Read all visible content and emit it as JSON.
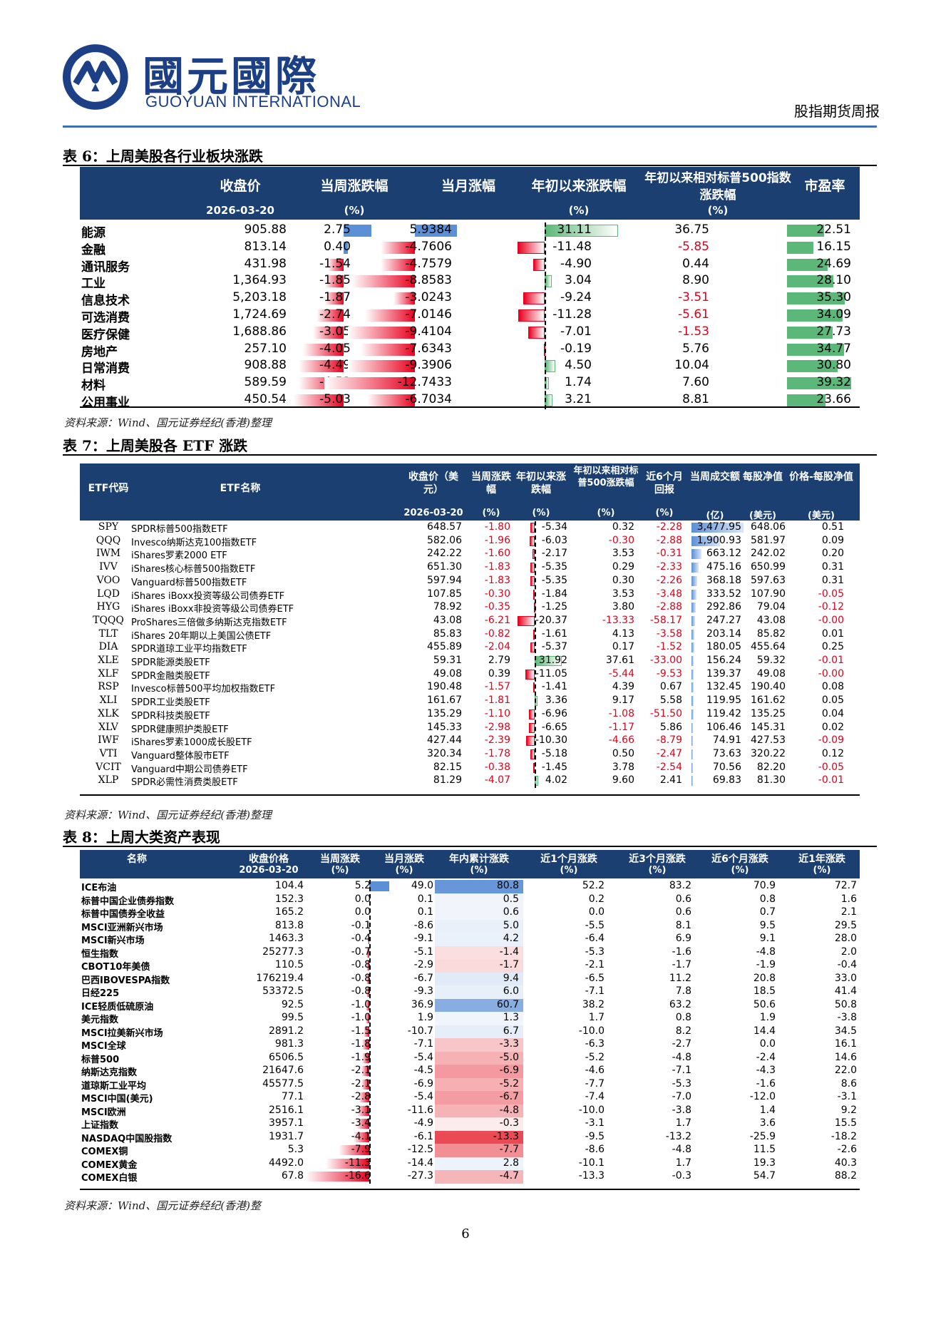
{
  "header": {
    "company_cn": "國元國際",
    "company_en": "GUOYUAN INTERNATIONAL",
    "report_type": "股指期货周报",
    "brand_color": "#1c3f86"
  },
  "page_number": "6",
  "table6": {
    "title": "表 6：上周美股各行业板块涨跌",
    "headers": {
      "close": "收盘价",
      "close_date": "2026-03-20",
      "week": "当周涨跌幅",
      "week_unit": "(%)",
      "month": "当月涨幅",
      "ytd": "年初以来涨跌幅",
      "ytd_unit": "(%)",
      "rel": "年初以来相对标普500指数涨跌幅",
      "rel_unit": "(%)",
      "pe": "市盈率"
    },
    "source": "资料来源：Wind、国元证券经纪(香港)整理",
    "rows": [
      {
        "name": "能源",
        "close": "905.88",
        "week": "2.75",
        "month": "5.9384",
        "ytd": "31.11",
        "rel": "36.75",
        "pe": "22.51",
        "w": 2.75,
        "m": 5.9384,
        "y": 31.11,
        "r": 36.75,
        "p": 22.51
      },
      {
        "name": "金融",
        "close": "813.14",
        "week": "0.40",
        "month": "-4.7606",
        "ytd": "-11.48",
        "rel": "-5.85",
        "pe": "16.15",
        "w": 0.4,
        "m": -4.7606,
        "y": -11.48,
        "r": -5.85,
        "p": 16.15
      },
      {
        "name": "通讯服务",
        "close": "431.98",
        "week": "-1.54",
        "month": "-4.7579",
        "ytd": "-4.90",
        "rel": "0.44",
        "pe": "24.69",
        "w": -1.54,
        "m": -4.7579,
        "y": -4.9,
        "r": 0.44,
        "p": 24.69
      },
      {
        "name": "工业",
        "close": "1,364.93",
        "week": "-1.85",
        "month": "-8.8583",
        "ytd": "3.04",
        "rel": "8.90",
        "pe": "28.10",
        "w": -1.85,
        "m": -8.8583,
        "y": 3.04,
        "r": 8.9,
        "p": 28.1
      },
      {
        "name": "信息技术",
        "close": "5,203.18",
        "week": "-1.87",
        "month": "-3.0243",
        "ytd": "-9.24",
        "rel": "-3.51",
        "pe": "35.30",
        "w": -1.87,
        "m": -3.0243,
        "y": -9.24,
        "r": -3.51,
        "p": 35.3
      },
      {
        "name": "可选消费",
        "close": "1,724.69",
        "week": "-2.74",
        "month": "-7.0146",
        "ytd": "-11.28",
        "rel": "-5.61",
        "pe": "34.09",
        "w": -2.74,
        "m": -7.0146,
        "y": -11.28,
        "r": -5.61,
        "p": 34.09
      },
      {
        "name": "医疗保健",
        "close": "1,688.86",
        "week": "-3.05",
        "month": "-9.4104",
        "ytd": "-7.01",
        "rel": "-1.53",
        "pe": "27.73",
        "w": -3.05,
        "m": -9.4104,
        "y": -7.01,
        "r": -1.53,
        "p": 27.73
      },
      {
        "name": "房地产",
        "close": "257.10",
        "week": "-4.05",
        "month": "-7.6343",
        "ytd": "-0.19",
        "rel": "5.76",
        "pe": "34.77",
        "w": -4.05,
        "m": -7.6343,
        "y": -0.19,
        "r": 5.76,
        "p": 34.77
      },
      {
        "name": "日常消费",
        "close": "908.88",
        "week": "-4.49",
        "month": "-9.3906",
        "ytd": "4.50",
        "rel": "10.04",
        "pe": "30.80",
        "w": -4.49,
        "m": -9.3906,
        "y": 4.5,
        "r": 10.04,
        "p": 30.8
      },
      {
        "name": "材料",
        "close": "589.59",
        "week": "-4.53",
        "month": "-12.7433",
        "ytd": "1.74",
        "rel": "7.60",
        "pe": "39.32",
        "w": -4.53,
        "m": -12.7433,
        "y": 1.74,
        "r": 7.6,
        "p": 39.32
      },
      {
        "name": "公用事业",
        "close": "450.54",
        "week": "-5.03",
        "month": "-6.7034",
        "ytd": "3.21",
        "rel": "8.81",
        "pe": "23.66",
        "w": -5.03,
        "m": -6.7034,
        "y": 3.21,
        "r": 8.81,
        "p": 23.66
      }
    ]
  },
  "table7": {
    "title": "表 7：上周美股各 ETF 涨跌",
    "headers": {
      "code": "ETF代码",
      "name": "ETF名称",
      "close": "收盘价（美元）",
      "close_date": "2026-03-20",
      "week": "当周涨跌幅",
      "ytd": "年初以来涨跌幅",
      "rel": "年初以来相对标普500涨跌幅",
      "m6": "近6个月回报",
      "vol": "当周成交额",
      "nav": "每股净值",
      "prem": "价格-每股净值",
      "u_pct": "(%)",
      "u_yi": "(亿)",
      "u_usd": "(美元)"
    },
    "source": "资料来源：Wind、国元证券经纪(香港)整理",
    "rows": [
      {
        "code": "SPY",
        "name": "SPDR标普500指数ETF",
        "close": "648.57",
        "week": "-1.80",
        "ytd": "-5.34",
        "rel": "0.32",
        "m6": "-2.28",
        "vol": "3,477.95",
        "nav": "648.06",
        "prem": "0.51",
        "y": -5.34,
        "v": 3477.95
      },
      {
        "code": "QQQ",
        "name": "Invesco纳斯达克100指数ETF",
        "close": "582.06",
        "week": "-1.96",
        "ytd": "-6.03",
        "rel": "-0.30",
        "m6": "-2.88",
        "vol": "1,900.93",
        "nav": "581.97",
        "prem": "0.09",
        "y": -6.03,
        "v": 1900.93
      },
      {
        "code": "IWM",
        "name": "iShares罗素2000 ETF",
        "close": "242.22",
        "week": "-1.60",
        "ytd": "-2.17",
        "rel": "3.53",
        "m6": "-0.31",
        "vol": "663.12",
        "nav": "242.02",
        "prem": "0.20",
        "y": -2.17,
        "v": 663.12
      },
      {
        "code": "IVV",
        "name": "iShares核心标普500指数ETF",
        "close": "651.30",
        "week": "-1.83",
        "ytd": "-5.35",
        "rel": "0.29",
        "m6": "-2.33",
        "vol": "475.16",
        "nav": "650.99",
        "prem": "0.31",
        "y": -5.35,
        "v": 475.16
      },
      {
        "code": "VOO",
        "name": "Vanguard标普500指数ETF",
        "close": "597.94",
        "week": "-1.83",
        "ytd": "-5.35",
        "rel": "0.30",
        "m6": "-2.26",
        "vol": "368.18",
        "nav": "597.63",
        "prem": "0.31",
        "y": -5.35,
        "v": 368.18
      },
      {
        "code": "LQD",
        "name": "iShares iBoxx投资等级公司债券ETF",
        "close": "107.85",
        "week": "-0.30",
        "ytd": "-1.84",
        "rel": "3.53",
        "m6": "-3.48",
        "vol": "333.52",
        "nav": "107.90",
        "prem": "-0.05",
        "y": -1.84,
        "v": 333.52
      },
      {
        "code": "HYG",
        "name": "iShares iBoxx非投资等级公司债券ETF",
        "close": "78.92",
        "week": "-0.35",
        "ytd": "-1.25",
        "rel": "3.80",
        "m6": "-2.88",
        "vol": "292.86",
        "nav": "79.04",
        "prem": "-0.12",
        "y": -1.25,
        "v": 292.86
      },
      {
        "code": "TQQQ",
        "name": "ProShares三倍做多纳斯达克指数ETF",
        "close": "43.08",
        "week": "-6.21",
        "ytd": "-20.37",
        "rel": "-13.33",
        "m6": "-58.17",
        "vol": "247.27",
        "nav": "43.08",
        "prem": "-0.00",
        "y": -20.37,
        "v": 247.27
      },
      {
        "code": "TLT",
        "name": "iShares 20年期以上美国公债ETF",
        "close": "85.83",
        "week": "-0.82",
        "ytd": "-1.61",
        "rel": "4.13",
        "m6": "-3.58",
        "vol": "203.14",
        "nav": "85.82",
        "prem": "0.01",
        "y": -1.61,
        "v": 203.14
      },
      {
        "code": "DIA",
        "name": "SPDR道琼工业平均指数ETF",
        "close": "455.89",
        "week": "-2.04",
        "ytd": "-5.37",
        "rel": "0.17",
        "m6": "-1.52",
        "vol": "180.05",
        "nav": "455.64",
        "prem": "0.25",
        "y": -5.37,
        "v": 180.05
      },
      {
        "code": "XLE",
        "name": "SPDR能源类股ETF",
        "close": "59.31",
        "week": "2.79",
        "ytd": "31.92",
        "rel": "37.61",
        "m6": "-33.00",
        "vol": "156.24",
        "nav": "59.32",
        "prem": "-0.01",
        "y": 31.92,
        "v": 156.24
      },
      {
        "code": "XLF",
        "name": "SPDR金融类股ETF",
        "close": "49.08",
        "week": "0.39",
        "ytd": "-11.05",
        "rel": "-5.44",
        "m6": "-9.53",
        "vol": "139.37",
        "nav": "49.08",
        "prem": "-0.00",
        "y": -11.05,
        "v": 139.37
      },
      {
        "code": "RSP",
        "name": "Invesco标普500平均加权指数ETF",
        "close": "190.48",
        "week": "-1.57",
        "ytd": "-1.41",
        "rel": "4.39",
        "m6": "0.67",
        "vol": "132.45",
        "nav": "190.40",
        "prem": "0.08",
        "y": -1.41,
        "v": 132.45
      },
      {
        "code": "XLI",
        "name": "SPDR工业类股ETF",
        "close": "161.67",
        "week": "-1.81",
        "ytd": "3.36",
        "rel": "9.17",
        "m6": "5.58",
        "vol": "119.95",
        "nav": "161.62",
        "prem": "0.05",
        "y": 3.36,
        "v": 119.95
      },
      {
        "code": "XLK",
        "name": "SPDR科技类股ETF",
        "close": "135.29",
        "week": "-1.10",
        "ytd": "-6.96",
        "rel": "-1.08",
        "m6": "-51.50",
        "vol": "119.42",
        "nav": "135.25",
        "prem": "0.04",
        "y": -6.96,
        "v": 119.42
      },
      {
        "code": "XLV",
        "name": "SPDR健康照护类股ETF",
        "close": "145.33",
        "week": "-2.98",
        "ytd": "-6.65",
        "rel": "-1.17",
        "m6": "5.86",
        "vol": "106.46",
        "nav": "145.31",
        "prem": "0.02",
        "y": -6.65,
        "v": 106.46
      },
      {
        "code": "IWF",
        "name": "iShares罗素1000成长股ETF",
        "close": "427.44",
        "week": "-2.39",
        "ytd": "-10.30",
        "rel": "-4.66",
        "m6": "-8.79",
        "vol": "74.91",
        "nav": "427.53",
        "prem": "-0.09",
        "y": -10.3,
        "v": 74.91
      },
      {
        "code": "VTI",
        "name": "Vanguard整体股市ETF",
        "close": "320.34",
        "week": "-1.78",
        "ytd": "-5.18",
        "rel": "0.50",
        "m6": "-2.47",
        "vol": "73.63",
        "nav": "320.22",
        "prem": "0.12",
        "y": -5.18,
        "v": 73.63
      },
      {
        "code": "VCIT",
        "name": "Vanguard中期公司债券ETF",
        "close": "82.15",
        "week": "-0.38",
        "ytd": "-1.45",
        "rel": "3.78",
        "m6": "-2.54",
        "vol": "70.56",
        "nav": "82.20",
        "prem": "-0.05",
        "y": -1.45,
        "v": 70.56
      },
      {
        "code": "XLP",
        "name": "SPDR必需性消费类股ETF",
        "close": "81.29",
        "week": "-4.07",
        "ytd": "4.02",
        "rel": "9.60",
        "m6": "2.41",
        "vol": "69.83",
        "nav": "81.30",
        "prem": "-0.01",
        "y": 4.02,
        "v": 69.83
      }
    ]
  },
  "table8": {
    "title": "表 8：上周大类资产表现",
    "headers": {
      "name": "名称",
      "close": "收盘价格",
      "close_date": "2026-03-20",
      "week": "当周涨跌",
      "month": "当月涨跌",
      "ytd": "年内累计涨跌",
      "m1": "近1个月涨跌",
      "m3": "近3个月涨跌",
      "m6": "近6个月涨跌",
      "y1": "近1年涨跌",
      "unit": "(%)"
    },
    "source": "资料来源：Wind、国元证券经纪(香港)整",
    "rows": [
      {
        "name": "ICE布油",
        "close": "104.4",
        "week": "5.2",
        "month": "49.0",
        "ytd": "80.8",
        "m1": "52.2",
        "m3": "83.2",
        "m6": "70.9",
        "y1": "72.7",
        "w": 5.2,
        "y": 80.8
      },
      {
        "name": "标普中国企业债券指数",
        "close": "152.3",
        "week": "0.0",
        "month": "0.1",
        "ytd": "0.5",
        "m1": "0.2",
        "m3": "0.6",
        "m6": "0.8",
        "y1": "1.6",
        "w": 0.0,
        "y": 0.5
      },
      {
        "name": "标普中国债券全收益",
        "close": "165.2",
        "week": "0.0",
        "month": "0.1",
        "ytd": "0.6",
        "m1": "0.0",
        "m3": "0.6",
        "m6": "0.7",
        "y1": "2.1",
        "w": 0.0,
        "y": 0.6
      },
      {
        "name": "MSCI亚洲新兴市场",
        "close": "813.8",
        "week": "-0.1",
        "month": "-8.6",
        "ytd": "5.0",
        "m1": "-5.5",
        "m3": "8.1",
        "m6": "9.5",
        "y1": "29.5",
        "w": -0.1,
        "y": 5.0
      },
      {
        "name": "MSCI新兴市场",
        "close": "1463.3",
        "week": "-0.4",
        "month": "-9.1",
        "ytd": "4.2",
        "m1": "-6.4",
        "m3": "6.9",
        "m6": "9.1",
        "y1": "28.0",
        "w": -0.4,
        "y": 4.2
      },
      {
        "name": "恒生指数",
        "close": "25277.3",
        "week": "-0.7",
        "month": "-5.1",
        "ytd": "-1.4",
        "m1": "-5.3",
        "m3": "-1.6",
        "m6": "-4.8",
        "y1": "2.0",
        "w": -0.7,
        "y": -1.4
      },
      {
        "name": "CBOT10年美债",
        "close": "110.5",
        "week": "-0.8",
        "month": "-2.9",
        "ytd": "-1.7",
        "m1": "-2.1",
        "m3": "-1.7",
        "m6": "-1.9",
        "y1": "-0.4",
        "w": -0.8,
        "y": -1.7
      },
      {
        "name": "巴西IBOVESPA指数",
        "close": "176219.4",
        "week": "-0.8",
        "month": "-6.7",
        "ytd": "9.4",
        "m1": "-6.5",
        "m3": "11.2",
        "m6": "20.8",
        "y1": "33.0",
        "w": -0.8,
        "y": 9.4
      },
      {
        "name": "日经225",
        "close": "53372.5",
        "week": "-0.8",
        "month": "-9.3",
        "ytd": "6.0",
        "m1": "-7.1",
        "m3": "7.8",
        "m6": "18.5",
        "y1": "41.4",
        "w": -0.8,
        "y": 6.0
      },
      {
        "name": "ICE轻质低硫原油",
        "close": "92.5",
        "week": "-1.0",
        "month": "36.9",
        "ytd": "60.7",
        "m1": "38.2",
        "m3": "63.2",
        "m6": "50.6",
        "y1": "50.8",
        "w": -1.0,
        "y": 60.7
      },
      {
        "name": "美元指数",
        "close": "99.5",
        "week": "-1.0",
        "month": "1.9",
        "ytd": "1.3",
        "m1": "1.7",
        "m3": "0.8",
        "m6": "1.9",
        "y1": "-3.8",
        "w": -1.0,
        "y": 1.3
      },
      {
        "name": "MSCI拉美新兴市场",
        "close": "2891.2",
        "week": "-1.5",
        "month": "-10.7",
        "ytd": "6.7",
        "m1": "-10.0",
        "m3": "8.2",
        "m6": "14.4",
        "y1": "34.5",
        "w": -1.5,
        "y": 6.7
      },
      {
        "name": "MSCI全球",
        "close": "981.3",
        "week": "-1.8",
        "month": "-7.1",
        "ytd": "-3.3",
        "m1": "-6.3",
        "m3": "-2.7",
        "m6": "0.0",
        "y1": "16.1",
        "w": -1.8,
        "y": -3.3
      },
      {
        "name": "标普500",
        "close": "6506.5",
        "week": "-1.9",
        "month": "-5.4",
        "ytd": "-5.0",
        "m1": "-5.2",
        "m3": "-4.8",
        "m6": "-2.4",
        "y1": "14.6",
        "w": -1.9,
        "y": -5.0
      },
      {
        "name": "纳斯达克指数",
        "close": "21647.6",
        "week": "-2.1",
        "month": "-4.5",
        "ytd": "-6.9",
        "m1": "-4.6",
        "m3": "-7.1",
        "m6": "-4.3",
        "y1": "22.0",
        "w": -2.1,
        "y": -6.9
      },
      {
        "name": "道琼斯工业平均",
        "close": "45577.5",
        "week": "-2.1",
        "month": "-6.9",
        "ytd": "-5.2",
        "m1": "-7.7",
        "m3": "-5.3",
        "m6": "-1.6",
        "y1": "8.6",
        "w": -2.1,
        "y": -5.2
      },
      {
        "name": "MSCI中国(美元)",
        "close": "77.1",
        "week": "-2.8",
        "month": "-5.4",
        "ytd": "-6.7",
        "m1": "-7.4",
        "m3": "-7.0",
        "m6": "-12.0",
        "y1": "-3.1",
        "w": -2.8,
        "y": -6.7
      },
      {
        "name": "MSCI欧洲",
        "close": "2516.1",
        "week": "-3.1",
        "month": "-11.6",
        "ytd": "-4.8",
        "m1": "-10.0",
        "m3": "-3.8",
        "m6": "1.4",
        "y1": "9.2",
        "w": -3.1,
        "y": -4.8
      },
      {
        "name": "上证指数",
        "close": "3957.1",
        "week": "-3.4",
        "month": "-4.9",
        "ytd": "-0.3",
        "m1": "-3.1",
        "m3": "1.7",
        "m6": "3.6",
        "y1": "15.5",
        "w": -3.4,
        "y": -0.3
      },
      {
        "name": "NASDAQ中国股指数",
        "close": "1931.7",
        "week": "-4.1",
        "month": "-6.1",
        "ytd": "-13.3",
        "m1": "-9.5",
        "m3": "-13.2",
        "m6": "-25.9",
        "y1": "-18.2",
        "w": -4.1,
        "y": -13.3
      },
      {
        "name": "COMEX铜",
        "close": "5.3",
        "week": "-7.9",
        "month": "-12.5",
        "ytd": "-7.7",
        "m1": "-8.6",
        "m3": "-4.8",
        "m6": "11.5",
        "y1": "-2.6",
        "w": -7.9,
        "y": -7.7
      },
      {
        "name": "COMEX黄金",
        "close": "4492.0",
        "week": "-11.3",
        "month": "-14.4",
        "ytd": "2.8",
        "m1": "-10.1",
        "m3": "1.7",
        "m6": "19.3",
        "y1": "40.3",
        "w": -11.3,
        "y": 2.8
      },
      {
        "name": "COMEX白银",
        "close": "67.8",
        "week": "-16.6",
        "month": "-27.3",
        "ytd": "-4.7",
        "m1": "-13.3",
        "m3": "-0.3",
        "m6": "54.7",
        "y1": "88.2",
        "w": -16.6,
        "y": -4.7
      }
    ]
  },
  "colors": {
    "header_bg": "#1b3f70",
    "pos_bar": "#5b8fd6",
    "neg_bar": "#e8001f",
    "green_bar": "#5cb878",
    "neg_text": "#e0001a"
  }
}
